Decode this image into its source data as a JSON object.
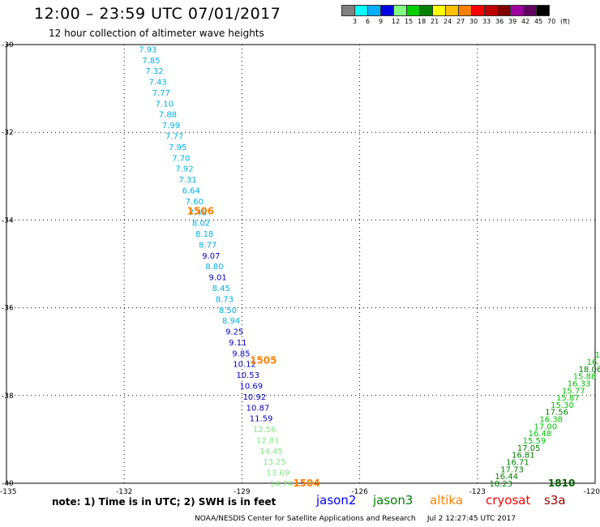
{
  "header": {
    "title": "12:00 – 23:59 UTC 07/01/2017",
    "subtitle": "12 hour collection of altimeter wave heights"
  },
  "color_scale": {
    "colors": [
      "#808080",
      "#00ffff",
      "#00b0ff",
      "#0000e0",
      "#80ff80",
      "#00d000",
      "#008000",
      "#ffff00",
      "#ffc000",
      "#ff8000",
      "#ff0000",
      "#c00000",
      "#800000",
      "#a000a0",
      "#600060",
      "#000000"
    ],
    "labels": [
      "3",
      "6",
      "9",
      "12",
      "15",
      "18",
      "21",
      "24",
      "27",
      "30",
      "33",
      "36",
      "39",
      "42",
      "45",
      "70",
      "(ft)"
    ]
  },
  "axes": {
    "lat_labels": [
      "-30",
      "-32",
      "-34",
      "-36",
      "-38",
      "-40"
    ],
    "lat_values": [
      -30,
      -32,
      -34,
      -36,
      -38,
      -40
    ],
    "lon_labels": [
      "-135",
      "-132",
      "-129",
      "-126",
      "-123",
      "-120"
    ],
    "lon_values": [
      -135,
      -132,
      -129,
      -126,
      -123,
      -120
    ]
  },
  "tracks": [
    {
      "satellite": "altika",
      "values": [
        "7.93",
        "7.85",
        "7.32",
        "7.43",
        "7.77",
        "7.10",
        "7.88",
        "7.99",
        "7.77",
        "7.95",
        "7.70",
        "7.92",
        "7.31",
        "6.64",
        "7.60",
        "7.48",
        "8.02",
        "8.18",
        "8.77",
        "9.07",
        "8.80",
        "9.01",
        "8.45",
        "8.73",
        "8.50",
        "8.94",
        "9.25",
        "9.11",
        "9.85",
        "10.12",
        "10.53",
        "10.69",
        "10.92",
        "10.87",
        "11.59",
        "12.56",
        "12.81",
        "14.45",
        "13.25",
        "13.69",
        "14.74"
      ],
      "colors": [
        "#00b0e0",
        "#00b0e0",
        "#00b0e0",
        "#00b0e0",
        "#00b0e0",
        "#00b0e0",
        "#00b0e0",
        "#00b0e0",
        "#00b0e0",
        "#00b0e0",
        "#00b0e0",
        "#00b0e0",
        "#00b0e0",
        "#00b0e0",
        "#00b0e0",
        "#00b0e0",
        "#00b0e0",
        "#00b0e0",
        "#00b0e0",
        "#0000c0",
        "#00b0e0",
        "#0000c0",
        "#00b0e0",
        "#00b0e0",
        "#00b0e0",
        "#00b0e0",
        "#0000c0",
        "#0000c0",
        "#0000c0",
        "#0000c0",
        "#0000c0",
        "#0000c0",
        "#0000c0",
        "#0000c0",
        "#0000c0",
        "#80e880",
        "#80e880",
        "#80e880",
        "#80e880",
        "#80e880",
        "#80e880"
      ],
      "lon_start": -131.4,
      "lon_end": -128.0,
      "lat_start": -30.1,
      "lat_end": -40.0
    },
    {
      "satellite": "jason3",
      "values": [
        "18.23",
        "16.44",
        "17.73",
        "16.71",
        "16.81",
        "17.05",
        "15.59",
        "16.48",
        "17.00",
        "16.38",
        "17.56",
        "15.30",
        "15.87",
        "15.77",
        "16.33",
        "15.88",
        "18.06",
        "16.4",
        "16.",
        "15"
      ],
      "colors": [
        "#008000",
        "#008000",
        "#008000",
        "#008000",
        "#008000",
        "#008000",
        "#00c000",
        "#00c000",
        "#00c000",
        "#00c000",
        "#008000",
        "#00c000",
        "#00c000",
        "#00c000",
        "#00c000",
        "#00c000",
        "#008000",
        "#00c000",
        "#00c000",
        "#00c000"
      ],
      "lon_start": -122.4,
      "lon_end": -119.7,
      "lat_start": -40.0,
      "lat_end": -36.9
    }
  ],
  "pass_labels": [
    {
      "text": "1506",
      "lon": -130.4,
      "lat": -33.8,
      "color": "#ff8000"
    },
    {
      "text": "1505",
      "lon": -128.8,
      "lat": -37.2,
      "color": "#ff8000"
    },
    {
      "text": "1504",
      "lon": -127.7,
      "lat": -40.0,
      "color": "#ff8000"
    },
    {
      "text": "1810",
      "lon": -121.2,
      "lat": -40.0,
      "color": "#006000"
    },
    {
      "text": "18",
      "lon": -119.9,
      "lat": -37.9,
      "color": "#006000"
    }
  ],
  "note": "note: 1) Time is in UTC; 2) SWH is in feet",
  "satellites": [
    {
      "name": "jason2",
      "color": "#0000ff"
    },
    {
      "name": "jason3",
      "color": "#008000"
    },
    {
      "name": "altika",
      "color": "#ff8000"
    },
    {
      "name": "cryosat",
      "color": "#ff0000"
    },
    {
      "name": "s3a",
      "color": "#a00000"
    }
  ],
  "footer": {
    "credit": "NOAA/NESDIS Center for Satellite Applications and Research",
    "timestamp": "Jul  2 12:27:45 UTC 2017"
  }
}
